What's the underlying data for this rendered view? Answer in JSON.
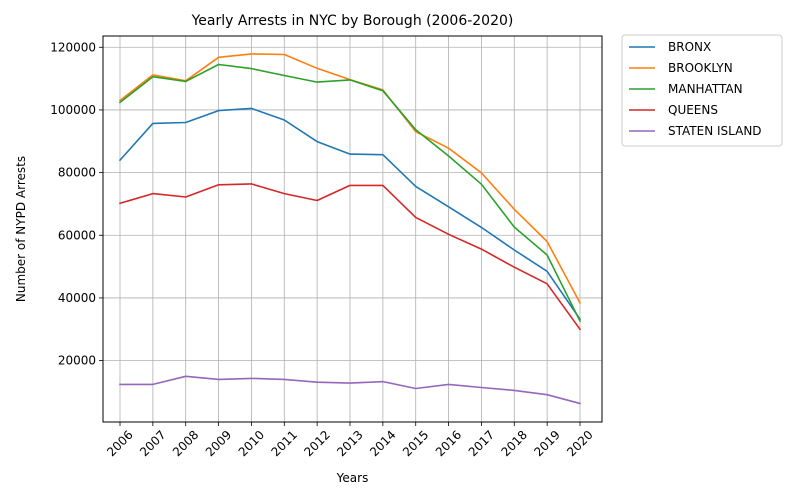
{
  "chart_data": {
    "type": "line",
    "title": "Yearly Arrests in NYC by Borough (2006-2020)",
    "xlabel": "Years",
    "ylabel": "Number of NYPD Arrests",
    "categories": [
      "2006",
      "2007",
      "2008",
      "2009",
      "2010",
      "2011",
      "2012",
      "2013",
      "2014",
      "2015",
      "2016",
      "2017",
      "2018",
      "2019",
      "2020"
    ],
    "ylim": [
      400,
      123600
    ],
    "yticks": [
      20000,
      40000,
      60000,
      80000,
      100000,
      120000
    ],
    "grid": true,
    "legend_position": "outside-top-right",
    "series": [
      {
        "name": "BRONX",
        "color": "#1f77b4",
        "values": [
          84000,
          95700,
          96000,
          99800,
          100500,
          96800,
          89900,
          85900,
          85700,
          75600,
          69100,
          62500,
          55300,
          48500,
          33200
        ]
      },
      {
        "name": "BROOKLYN",
        "color": "#ff7f0e",
        "values": [
          103000,
          111200,
          109300,
          116800,
          117900,
          117700,
          113300,
          109700,
          106400,
          93100,
          87800,
          79900,
          68300,
          58000,
          38400
        ]
      },
      {
        "name": "MANHATTAN",
        "color": "#2ca02c",
        "values": [
          102400,
          110600,
          109100,
          114500,
          113200,
          111000,
          108900,
          109600,
          106100,
          93700,
          85300,
          76300,
          62600,
          53700,
          32600
        ]
      },
      {
        "name": "QUEENS",
        "color": "#d62728",
        "values": [
          70200,
          73300,
          72200,
          76100,
          76400,
          73300,
          71100,
          75900,
          75900,
          65700,
          60300,
          55600,
          49800,
          44500,
          30000
        ]
      },
      {
        "name": "STATEN ISLAND",
        "color": "#9467bd",
        "values": [
          12400,
          12400,
          15000,
          14000,
          14300,
          14000,
          13100,
          12800,
          13300,
          11100,
          12400,
          11400,
          10500,
          9100,
          6300
        ]
      }
    ]
  }
}
